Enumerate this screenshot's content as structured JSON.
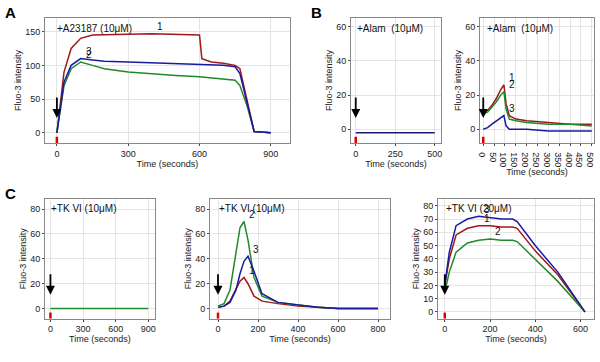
{
  "chart_data": [
    {
      "type": "line",
      "panel": "A",
      "title": "+A23187 (10μM)",
      "x_label": "Time (seconds)",
      "y_label": "Fluo-3 intensity",
      "treatment_time": 0,
      "grid": true,
      "xlim": [
        -50,
        980
      ],
      "xticks": [
        0,
        300,
        600,
        900
      ],
      "ylim": [
        -15,
        170
      ],
      "yticks": [
        0,
        50,
        100,
        150
      ],
      "series": [
        {
          "name": "1",
          "color": "#a01818",
          "x": [
            0,
            10,
            30,
            60,
            100,
            150,
            200,
            300,
            400,
            500,
            600,
            610,
            650,
            700,
            750,
            770,
            800,
            830,
            900
          ],
          "values": [
            0,
            30,
            90,
            125,
            140,
            145,
            145,
            146,
            147,
            146,
            145,
            110,
            105,
            103,
            100,
            95,
            50,
            2,
            0
          ]
        },
        {
          "name": "2",
          "color": "#1f8a2a",
          "x": [
            0,
            10,
            30,
            60,
            100,
            150,
            200,
            300,
            400,
            500,
            600,
            700,
            750,
            770,
            800,
            830,
            900
          ],
          "values": [
            0,
            25,
            70,
            95,
            105,
            100,
            95,
            90,
            87,
            85,
            83,
            80,
            78,
            70,
            40,
            2,
            0
          ]
        },
        {
          "name": "3",
          "color": "#1a1aa0",
          "x": [
            0,
            10,
            30,
            60,
            100,
            150,
            200,
            300,
            400,
            500,
            600,
            700,
            750,
            770,
            800,
            830,
            900
          ],
          "values": [
            0,
            25,
            75,
            100,
            110,
            108,
            106,
            105,
            104,
            103,
            102,
            100,
            98,
            88,
            45,
            2,
            0
          ]
        }
      ]
    },
    {
      "type": "line",
      "panel": "B",
      "title": "+Alam  (10μM)",
      "x_label": "Time (seconds)",
      "y_label": "Fluo-3 intensity",
      "treatment_time": 0,
      "grid": true,
      "xlim": [
        -30,
        540
      ],
      "xticks": [
        0,
        250,
        500
      ],
      "ylim": [
        -8,
        65
      ],
      "yticks": [
        0,
        20,
        40,
        60
      ],
      "series": [
        {
          "color": "#1a1a6e",
          "x": [
            0,
            100,
            200,
            300,
            400,
            500
          ],
          "values": [
            -2,
            -2,
            -2,
            -2,
            -2,
            -2
          ]
        }
      ]
    },
    {
      "type": "line",
      "title": "+Alam  (10μM)",
      "x_label": "Time (seconds)",
      "y_label": "Fluo-3 intensity",
      "treatment_time": 0,
      "grid": true,
      "xlim": [
        -15,
        510
      ],
      "xticks": [
        0,
        50,
        100,
        150,
        200,
        250,
        300,
        350,
        400,
        450,
        500
      ],
      "ylim": [
        -8,
        65
      ],
      "yticks": [
        0,
        20,
        40,
        60
      ],
      "series": [
        {
          "name": "1",
          "color": "#a01818",
          "x": [
            0,
            20,
            40,
            60,
            80,
            95,
            105,
            120,
            150,
            200,
            300,
            400,
            500
          ],
          "values": [
            10,
            11,
            14,
            18,
            23,
            26,
            15,
            8,
            6,
            5,
            4,
            3,
            3
          ]
        },
        {
          "name": "2",
          "color": "#1f8a2a",
          "x": [
            0,
            20,
            40,
            60,
            80,
            95,
            105,
            120,
            150,
            200,
            300,
            400,
            500
          ],
          "values": [
            9,
            10,
            13,
            16,
            20,
            22,
            12,
            6,
            5,
            4,
            3,
            3,
            2
          ]
        },
        {
          "name": "3",
          "color": "#1a1aa0",
          "x": [
            0,
            20,
            40,
            60,
            80,
            95,
            105,
            120,
            150,
            200,
            300,
            400,
            500
          ],
          "values": [
            0,
            1,
            3,
            5,
            7,
            8,
            2,
            0,
            0,
            0,
            -1,
            -1,
            -1
          ]
        }
      ]
    },
    {
      "type": "line",
      "panel": "C",
      "title": "+TK VI (10μM)",
      "x_label": "Time (seconds)",
      "y_label": "Fluo-3 intensity",
      "treatment_time": 0,
      "grid": true,
      "xlim": [
        -50,
        960
      ],
      "xticks": [
        0,
        300,
        600,
        900
      ],
      "ylim": [
        -8,
        88
      ],
      "yticks": [
        0,
        20,
        40,
        60,
        80
      ],
      "series": [
        {
          "color": "#1f8a2a",
          "x": [
            0,
            100,
            200,
            300,
            400,
            500,
            600,
            700,
            800,
            900
          ],
          "values": [
            0,
            0,
            0,
            0,
            0,
            0,
            0,
            0,
            0,
            0
          ]
        }
      ]
    },
    {
      "type": "line",
      "title": "+TK VI (10μM)",
      "x_label": "Time (seconds)",
      "y_label": "Fluo-3 intensity",
      "treatment_time": 0,
      "grid": true,
      "xlim": [
        -40,
        860
      ],
      "xticks": [
        0,
        200,
        400,
        600,
        800
      ],
      "ylim": [
        -8,
        88
      ],
      "yticks": [
        0,
        20,
        40,
        60,
        80
      ],
      "series": [
        {
          "name": "1",
          "color": "#a01818",
          "x": [
            0,
            30,
            60,
            90,
            110,
            130,
            150,
            180,
            220,
            300,
            400,
            500,
            600,
            800
          ],
          "values": [
            1,
            2,
            6,
            15,
            22,
            25,
            20,
            10,
            6,
            4,
            2,
            1,
            0,
            0
          ]
        },
        {
          "name": "2",
          "color": "#1f8a2a",
          "x": [
            0,
            30,
            60,
            90,
            110,
            130,
            150,
            180,
            220,
            300,
            400,
            500,
            600,
            800
          ],
          "values": [
            2,
            4,
            15,
            45,
            65,
            70,
            55,
            25,
            10,
            5,
            3,
            1,
            0,
            0
          ]
        },
        {
          "name": "3",
          "color": "#1a1aa0",
          "x": [
            0,
            30,
            60,
            90,
            110,
            130,
            150,
            180,
            220,
            300,
            400,
            500,
            600,
            800
          ],
          "values": [
            1,
            2,
            5,
            15,
            28,
            38,
            42,
            30,
            12,
            5,
            3,
            1,
            0,
            0
          ]
        }
      ]
    },
    {
      "type": "line",
      "title": "+TK VI (20μM)",
      "x_label": "Time (seconds)",
      "y_label": "Fluo-3 intensity",
      "treatment_time": 0,
      "grid": true,
      "xlim": [
        -30,
        660
      ],
      "xticks": [
        0,
        200,
        400,
        600
      ],
      "ylim": [
        -5,
        85
      ],
      "yticks": [
        0,
        10,
        20,
        30,
        40,
        50,
        60,
        70,
        80
      ],
      "series": [
        {
          "name": "1",
          "color": "#a01818",
          "x": [
            0,
            20,
            50,
            100,
            150,
            200,
            250,
            300,
            320,
            400,
            500,
            620
          ],
          "values": [
            20,
            40,
            58,
            63,
            65,
            65,
            64,
            64,
            63,
            46,
            28,
            0
          ]
        },
        {
          "name": "2",
          "color": "#1f8a2a",
          "x": [
            0,
            20,
            50,
            100,
            150,
            200,
            250,
            300,
            320,
            400,
            500,
            620
          ],
          "values": [
            15,
            30,
            45,
            52,
            54,
            55,
            54,
            54,
            53,
            40,
            23,
            0
          ]
        },
        {
          "name": "3",
          "color": "#1a1aa0",
          "x": [
            0,
            20,
            50,
            100,
            150,
            200,
            250,
            300,
            320,
            400,
            500,
            620
          ],
          "values": [
            20,
            45,
            65,
            70,
            72,
            71,
            70,
            70,
            68,
            50,
            30,
            0
          ]
        }
      ]
    }
  ]
}
